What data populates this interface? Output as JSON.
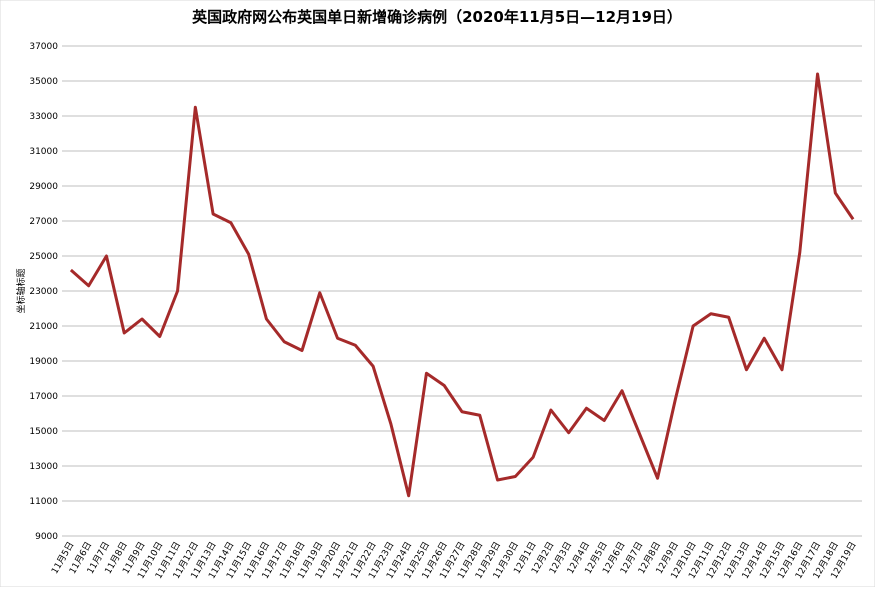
{
  "chart_data": {
    "type": "line",
    "title": "英国政府网公布英国单日新增确诊病例（2020年11月5日—12月19日）",
    "y_label": "坐标轴标题",
    "categories": [
      "11月5日",
      "11月6日",
      "11月7日",
      "11月8日",
      "11月9日",
      "11月10日",
      "11月11日",
      "11月12日",
      "11月13日",
      "11月14日",
      "11月15日",
      "11月16日",
      "11月17日",
      "11月18日",
      "11月19日",
      "11月20日",
      "11月21日",
      "11月22日",
      "11月23日",
      "11月24日",
      "11月25日",
      "11月26日",
      "11月27日",
      "11月28日",
      "11月29日",
      "11月30日",
      "12月1日",
      "12月2日",
      "12月3日",
      "12月4日",
      "12月5日",
      "12月6日",
      "12月7日",
      "12月8日",
      "12月9日",
      "12月10日",
      "12月11日",
      "12月12日",
      "12月13日",
      "12月14日",
      "12月15日",
      "12月16日",
      "12月17日",
      "12月18日",
      "12月19日"
    ],
    "values": [
      24200,
      23300,
      25000,
      20600,
      21400,
      20400,
      23000,
      33500,
      27400,
      26900,
      25100,
      21400,
      20100,
      19600,
      22900,
      20300,
      19900,
      18700,
      15400,
      11300,
      18300,
      17600,
      16100,
      15900,
      12200,
      12400,
      13500,
      16200,
      14900,
      16300,
      15600,
      17300,
      14800,
      12300,
      16800,
      21000,
      21700,
      21500,
      18500,
      20300,
      18500,
      25200,
      35400,
      28600,
      27100
    ],
    "color": "#a52a2a",
    "ylim": [
      9000,
      37000
    ],
    "yticks": [
      9000,
      11000,
      13000,
      15000,
      17000,
      19000,
      21000,
      23000,
      25000,
      27000,
      29000,
      31000,
      33000,
      35000,
      37000
    ],
    "grid": true
  }
}
